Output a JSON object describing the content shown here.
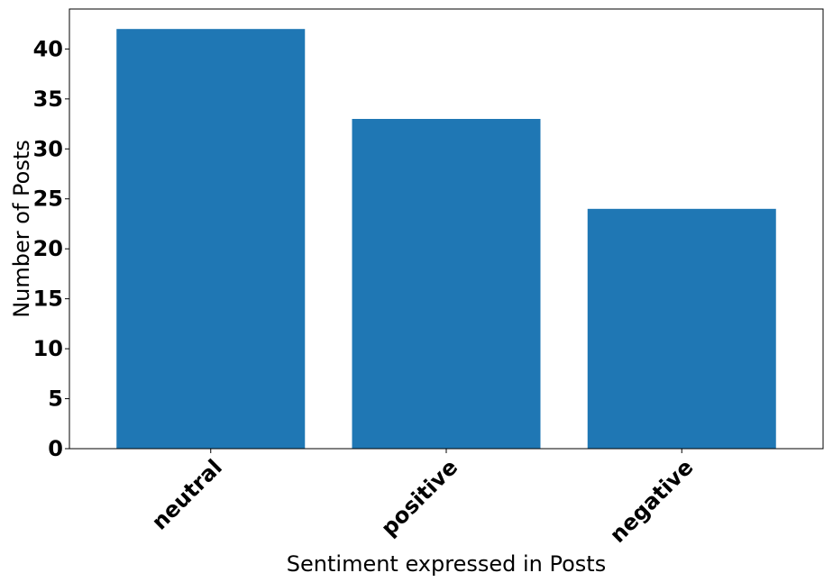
{
  "chart_data": {
    "type": "bar",
    "categories": [
      "neutral",
      "positive",
      "negative"
    ],
    "values": [
      42,
      33,
      24
    ],
    "title": "",
    "xlabel": "Sentiment expressed in Posts",
    "ylabel": "Number of Posts",
    "ylim": [
      0,
      44
    ],
    "yticks": [
      0,
      5,
      10,
      15,
      20,
      25,
      30,
      35,
      40
    ],
    "grid": false,
    "bar_color": "#1f77b4"
  }
}
